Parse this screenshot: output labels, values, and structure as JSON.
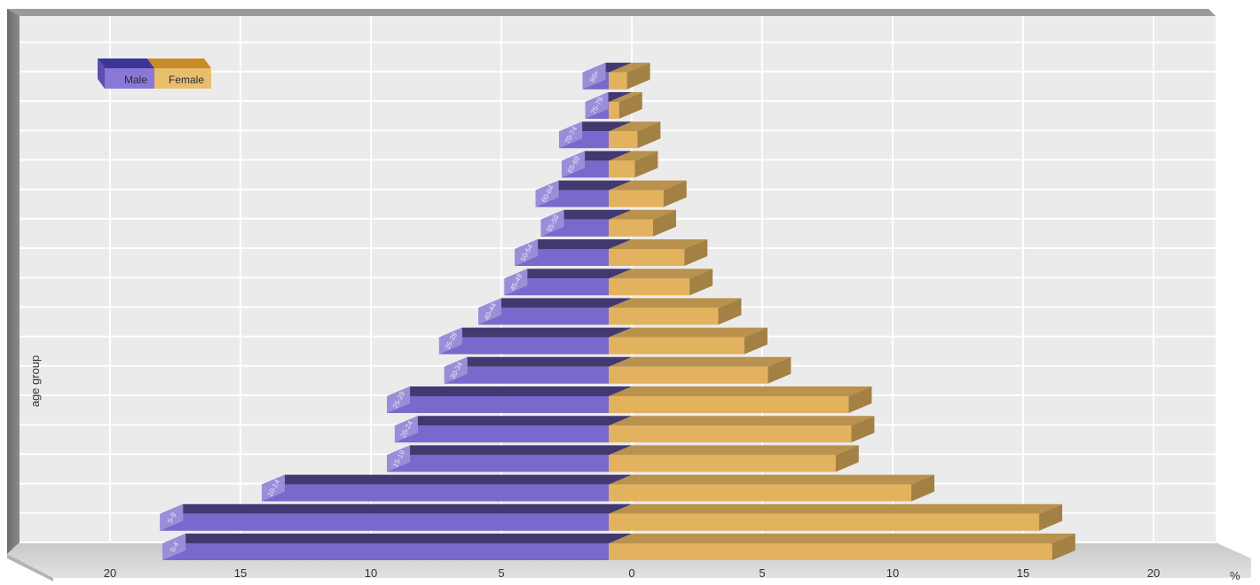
{
  "chart_data": {
    "type": "bar",
    "orientation": "horizontal",
    "layout": "population-pyramid",
    "ylabel": "age group",
    "x_unit": "%",
    "xlim": [
      -20,
      20
    ],
    "x_ticks": [
      {
        "value": -20,
        "label": "20"
      },
      {
        "value": -15,
        "label": "15"
      },
      {
        "value": -10,
        "label": "10"
      },
      {
        "value": -5,
        "label": "5"
      },
      {
        "value": 0,
        "label": "0"
      },
      {
        "value": 5,
        "label": "5"
      },
      {
        "value": 10,
        "label": "10"
      },
      {
        "value": 15,
        "label": "15"
      },
      {
        "value": 20,
        "label": "20"
      }
    ],
    "grid": true,
    "legend_position": "top-left",
    "categories": [
      "0-4",
      "5-9",
      "10-14",
      "15-19",
      "20-24",
      "25-29",
      "30-34",
      "35-39",
      "40-44",
      "45-49",
      "50-54",
      "55-59",
      "60-64",
      "65-69",
      "70-74",
      "75-79",
      "80+"
    ],
    "series": [
      {
        "name": "Male",
        "color": "#7a68cc",
        "values": [
          17.1,
          17.2,
          13.3,
          8.5,
          8.2,
          8.5,
          6.3,
          6.5,
          5.0,
          4.0,
          3.6,
          2.6,
          2.8,
          1.8,
          1.9,
          0.9,
          1.0
        ]
      },
      {
        "name": "Female",
        "color": "#e2b25e",
        "values": [
          17.0,
          16.5,
          11.6,
          8.7,
          9.3,
          9.2,
          6.1,
          5.2,
          4.2,
          3.1,
          2.9,
          1.7,
          2.1,
          1.0,
          1.1,
          0.4,
          0.7
        ]
      }
    ]
  },
  "legend": {
    "male_label": "Male",
    "female_label": "Female"
  },
  "colors": {
    "panel": "#ebebeb",
    "panel_shadow": "#7e7e7e",
    "grid": "#ffffff",
    "floor": "#d0d0d0"
  }
}
